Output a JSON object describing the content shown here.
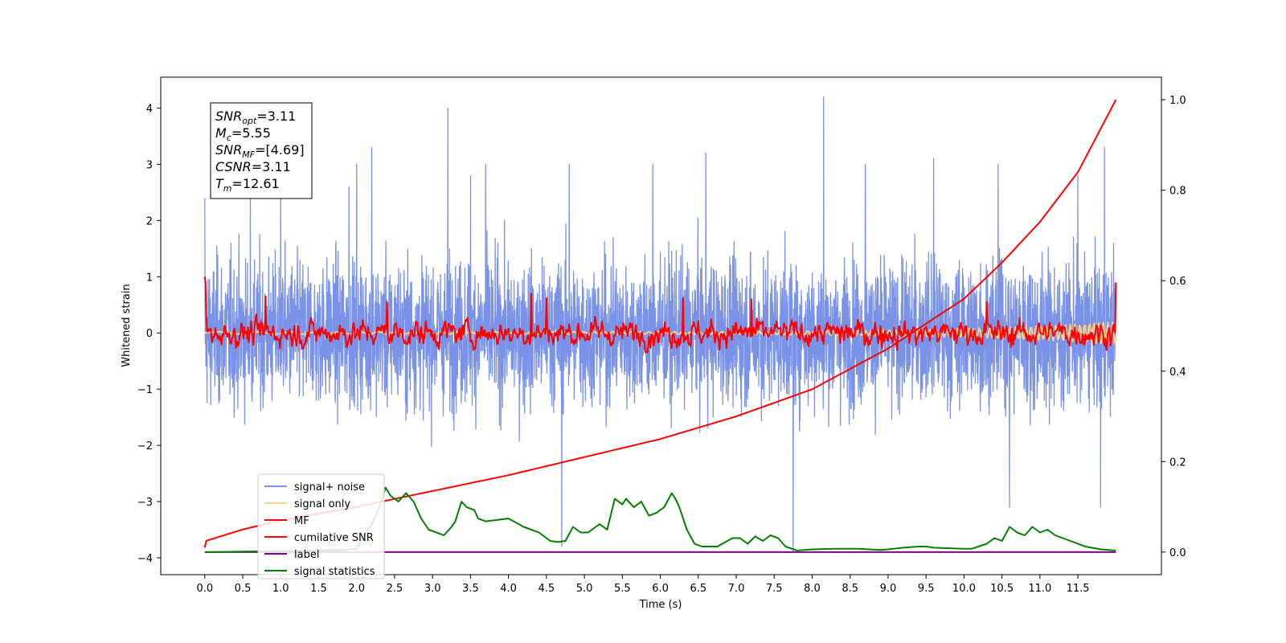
{
  "chart_data": {
    "type": "line",
    "xlabel": "Time (s)",
    "ylabel": "Whitened strain",
    "xlim": [
      -0.58,
      12.6
    ],
    "ylim": [
      -4.3,
      4.55
    ],
    "ylim_right": [
      -0.05,
      1.05
    ],
    "x_ticks": [
      "0.0",
      "0.5",
      "1.0",
      "1.5",
      "2.0",
      "2.5",
      "3.0",
      "3.5",
      "4.0",
      "4.5",
      "5.0",
      "5.5",
      "6.0",
      "6.5",
      "7.0",
      "7.5",
      "8.0",
      "8.5",
      "9.0",
      "9.5",
      "10.0",
      "10.5",
      "11.0",
      "11.5"
    ],
    "y_ticks_left": [
      "4",
      "3",
      "2",
      "1",
      "0",
      "−1",
      "−2",
      "−3",
      "−4"
    ],
    "y_ticks_right": [
      "1.0",
      "0.8",
      "0.6",
      "0.4",
      "0.2",
      "0.0"
    ],
    "legend_position": "lower-left",
    "legend": [
      {
        "label": "signal+ noise",
        "color": "#7a93e8"
      },
      {
        "label": "signal only",
        "color": "#ffd080"
      },
      {
        "label": "MF",
        "color": "#ff0000"
      },
      {
        "label": "cumilative SNR",
        "color": "#ff0000"
      },
      {
        "label": "label",
        "color": "#800080"
      },
      {
        "label": "signal statistics",
        "color": "#008000"
      }
    ],
    "annotation_lines": [
      {
        "base": "SNR",
        "sub": "opt",
        "value": "=3.11"
      },
      {
        "base": "M",
        "sub": "c",
        "value": "=5.55"
      },
      {
        "base": "SNR",
        "sub": "MF",
        "value": "=[4.69]"
      },
      {
        "base": "CSNR",
        "sub": "",
        "value": "=3.11"
      },
      {
        "base": "T",
        "sub": "m",
        "value": "=12.61"
      }
    ],
    "series": [
      {
        "name": "signal+ noise",
        "axis": "left",
        "color": "#7a93e8",
        "description_of_values": "dense noise-like trace spanning 0 to 12.0 s, typically between -2.5 and 2.5",
        "spikes": [
          [
            0.0,
            2.4
          ],
          [
            0.6,
            2.6
          ],
          [
            1.0,
            2.9
          ],
          [
            1.9,
            2.6
          ],
          [
            2.0,
            3.0
          ],
          [
            2.2,
            3.3
          ],
          [
            3.2,
            4.0
          ],
          [
            3.5,
            2.8
          ],
          [
            3.7,
            3.0
          ],
          [
            4.8,
            3.0
          ],
          [
            5.9,
            3.0
          ],
          [
            6.6,
            3.2
          ],
          [
            8.15,
            4.2
          ],
          [
            8.7,
            3.0
          ],
          [
            9.6,
            3.1
          ],
          [
            10.45,
            3.0
          ],
          [
            11.5,
            2.8
          ],
          [
            11.85,
            3.3
          ],
          [
            4.7,
            -3.8
          ],
          [
            7.75,
            -3.9
          ],
          [
            11.8,
            -3.1
          ],
          [
            10.6,
            -3.1
          ]
        ]
      },
      {
        "name": "signal only",
        "axis": "left",
        "color": "#ffd080",
        "x": [
          0,
          2,
          4,
          6,
          8,
          10,
          11,
          11.5,
          12.0
        ],
        "y": [
          0.0,
          0.0,
          0.0,
          0.0,
          0.02,
          0.05,
          0.08,
          0.12,
          0.0
        ]
      },
      {
        "name": "MF",
        "axis": "left",
        "color": "#ff0000",
        "description_of_values": "noisy trace around 0, typically between -0.4 and 0.7; starts at 1.0 at t=0",
        "spikes": [
          [
            0.0,
            1.0
          ],
          [
            0.8,
            0.65
          ],
          [
            2.4,
            0.55
          ],
          [
            4.3,
            0.7
          ],
          [
            4.5,
            0.62
          ],
          [
            6.3,
            0.62
          ],
          [
            7.2,
            0.6
          ],
          [
            10.3,
            0.55
          ],
          [
            12.0,
            0.9
          ]
        ]
      },
      {
        "name": "cumilative SNR",
        "axis": "right",
        "color": "#ff0000",
        "x": [
          0.0,
          0.02,
          0.5,
          1.0,
          2.0,
          3.0,
          4.0,
          5.0,
          6.0,
          7.0,
          8.0,
          9.0,
          10.0,
          10.5,
          11.0,
          11.5,
          12.0
        ],
        "y": [
          0.01,
          0.025,
          0.05,
          0.07,
          0.1,
          0.135,
          0.17,
          0.21,
          0.25,
          0.3,
          0.36,
          0.45,
          0.56,
          0.64,
          0.73,
          0.84,
          1.0
        ]
      },
      {
        "name": "label",
        "axis": "right",
        "color": "#800080",
        "x": [
          0.0,
          12.0
        ],
        "y": [
          0.0,
          0.0
        ]
      },
      {
        "name": "signal statistics",
        "axis": "left",
        "color": "#008000",
        "x": [
          0.0,
          0.5,
          1.0,
          1.5,
          1.8,
          2.0,
          2.1,
          2.2,
          2.3,
          2.38,
          2.45,
          2.55,
          2.65,
          2.75,
          2.85,
          2.95,
          3.05,
          3.15,
          3.25,
          3.3,
          3.38,
          3.45,
          3.55,
          3.6,
          3.7,
          4.0,
          4.2,
          4.3,
          4.4,
          4.5,
          4.55,
          4.65,
          4.75,
          4.85,
          4.95,
          5.05,
          5.2,
          5.3,
          5.4,
          5.5,
          5.55,
          5.65,
          5.75,
          5.85,
          5.95,
          6.05,
          6.15,
          6.2,
          6.25,
          6.35,
          6.45,
          6.55,
          6.75,
          6.95,
          7.05,
          7.15,
          7.25,
          7.35,
          7.45,
          7.55,
          7.65,
          7.8,
          8.0,
          8.3,
          8.6,
          8.9,
          9.0,
          9.2,
          9.4,
          9.5,
          9.6,
          9.8,
          10.0,
          10.1,
          10.3,
          10.4,
          10.5,
          10.6,
          10.7,
          10.8,
          10.9,
          11.0,
          11.1,
          11.2,
          11.4,
          11.6,
          11.8,
          12.0
        ],
        "y": [
          -3.9,
          -3.89,
          -3.88,
          -3.87,
          -3.86,
          -3.84,
          -3.6,
          -3.4,
          -3.1,
          -2.75,
          -2.9,
          -3.0,
          -2.85,
          -3.0,
          -3.3,
          -3.5,
          -3.55,
          -3.6,
          -3.45,
          -3.35,
          -3.0,
          -3.1,
          -3.15,
          -3.3,
          -3.35,
          -3.3,
          -3.45,
          -3.5,
          -3.55,
          -3.65,
          -3.7,
          -3.72,
          -3.7,
          -3.45,
          -3.55,
          -3.55,
          -3.4,
          -3.5,
          -2.95,
          -3.05,
          -2.95,
          -3.1,
          -3.0,
          -3.25,
          -3.2,
          -3.1,
          -2.85,
          -2.95,
          -3.1,
          -3.5,
          -3.75,
          -3.8,
          -3.8,
          -3.65,
          -3.65,
          -3.75,
          -3.62,
          -3.7,
          -3.6,
          -3.65,
          -3.8,
          -3.87,
          -3.85,
          -3.84,
          -3.84,
          -3.86,
          -3.85,
          -3.82,
          -3.8,
          -3.8,
          -3.82,
          -3.83,
          -3.84,
          -3.84,
          -3.75,
          -3.65,
          -3.7,
          -3.45,
          -3.55,
          -3.6,
          -3.45,
          -3.55,
          -3.5,
          -3.6,
          -3.7,
          -3.8,
          -3.85,
          -3.87
        ]
      }
    ]
  }
}
